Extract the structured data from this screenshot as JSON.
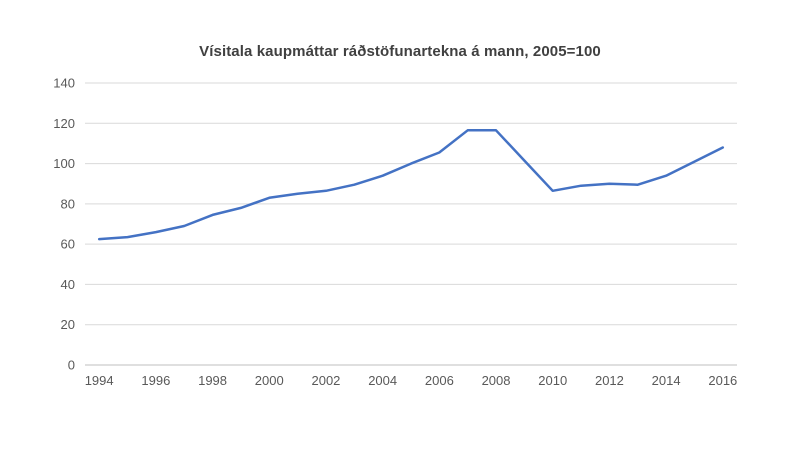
{
  "page": {
    "background_color": "#ffffff"
  },
  "chart_data": {
    "type": "line",
    "title": "Vísitala kaupmáttar ráðstöfunartekna á mann, 2005=100",
    "x": [
      1994,
      1995,
      1996,
      1997,
      1998,
      1999,
      2000,
      2001,
      2002,
      2003,
      2004,
      2005,
      2006,
      2007,
      2008,
      2009,
      2010,
      2011,
      2012,
      2013,
      2014,
      2015,
      2016
    ],
    "series": [
      {
        "name": "Vísitala kaupmáttar ráðstöfunartekna á mann",
        "values": [
          62.5,
          63.5,
          66,
          69,
          74.5,
          78,
          83,
          85,
          86.5,
          89.5,
          94,
          100,
          105.5,
          116.5,
          116.5,
          101.5,
          86.5,
          89,
          90,
          89.5,
          94,
          101,
          108
        ]
      }
    ],
    "xlabel": "",
    "ylabel": "",
    "ylim": [
      0,
      140
    ],
    "ytick_step": 20,
    "ytick_labels": [
      "0",
      "20",
      "40",
      "60",
      "80",
      "100",
      "120",
      "140"
    ],
    "xtick_labels": [
      "1994",
      "1996",
      "1998",
      "2000",
      "2002",
      "2004",
      "2006",
      "2008",
      "2010",
      "2012",
      "2014",
      "2016"
    ],
    "xtick_every": 2,
    "grid": true,
    "legend": false,
    "colors": {
      "line": "#4472C4",
      "gridline": "#D9D9D9",
      "axis_line": "#BFBFBF",
      "tick_label": "#595959",
      "title": "#404040"
    }
  }
}
